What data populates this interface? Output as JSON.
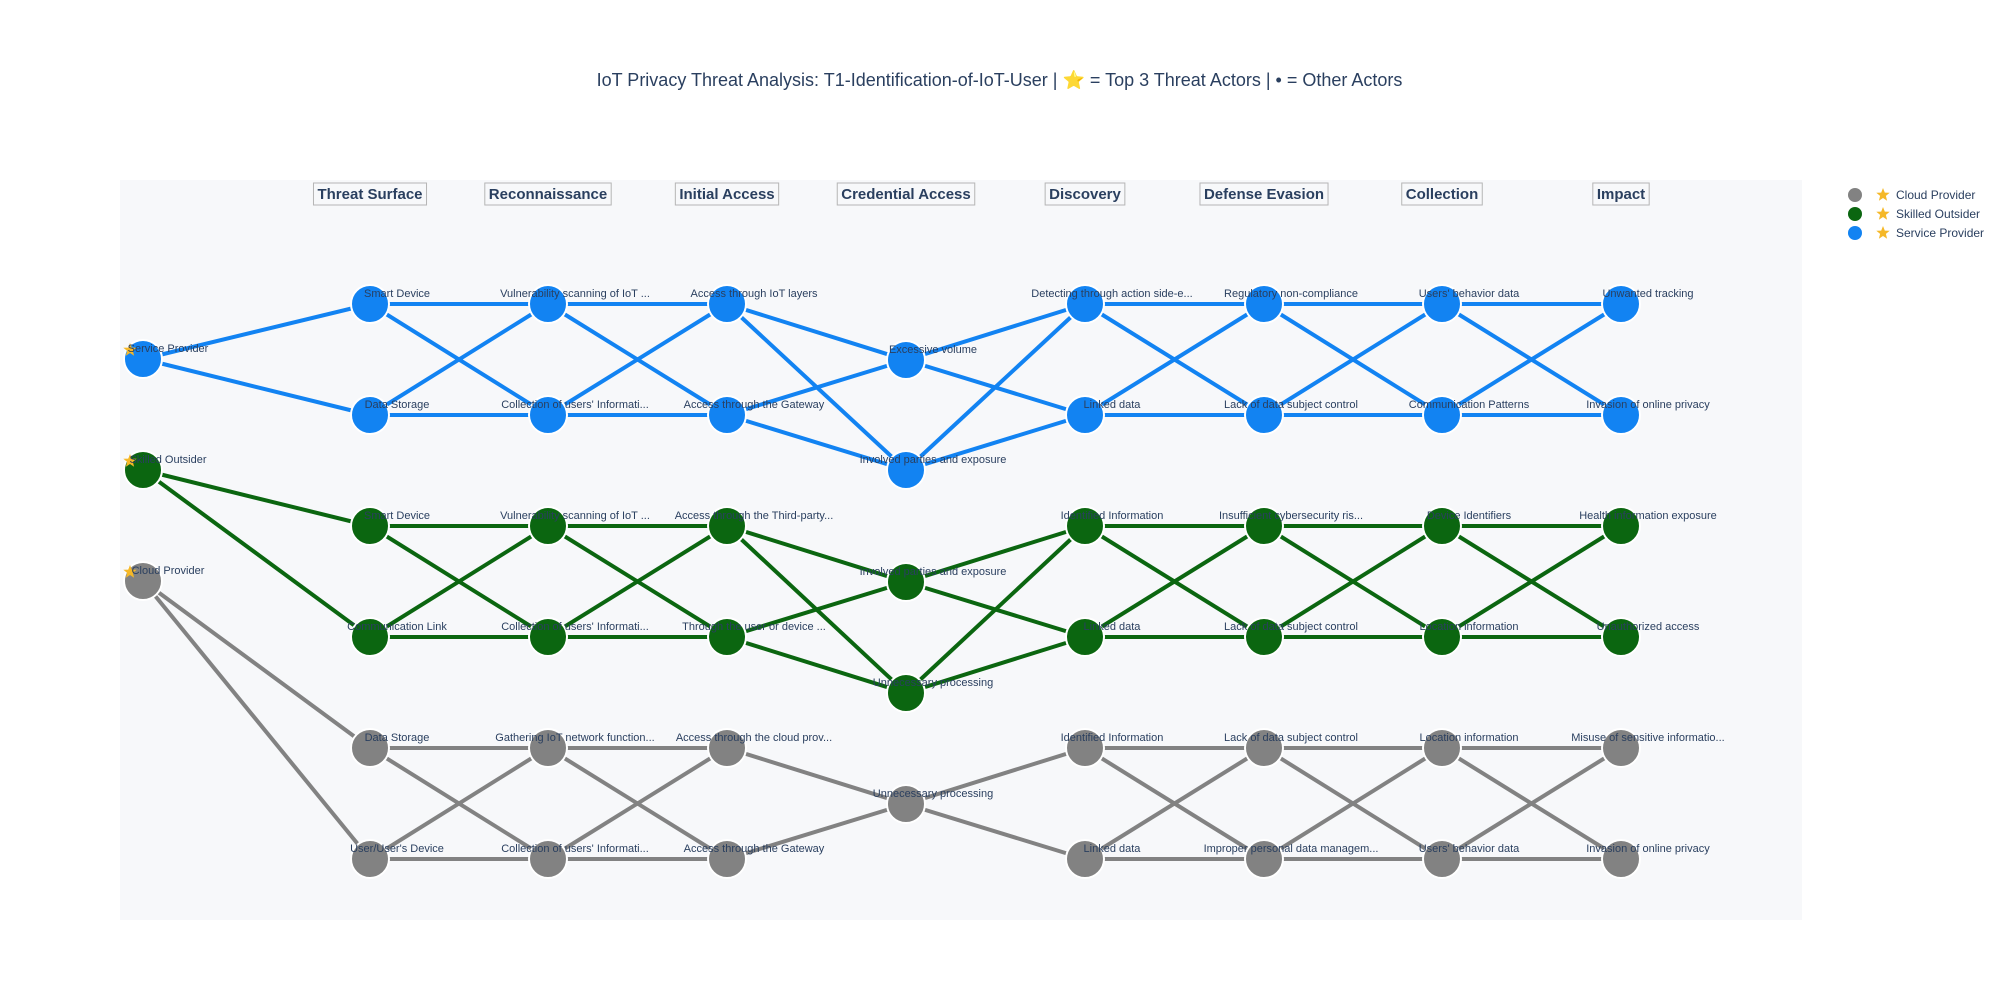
{
  "title": "IoT Privacy Threat Analysis: T1-Identification-of-IoT-User | ⭐ = Top 3 Threat Actors | • = Other Actors",
  "colors": {
    "service_provider": "#1283f2",
    "skilled_outsider": "#0b6610",
    "cloud_provider": "#828282",
    "star": "#f5b828",
    "plot_bg": "#f7f8fa",
    "text": "#2a3f5f"
  },
  "stages": [
    "Threat Surface",
    "Reconnaissance",
    "Initial Access",
    "Credential Access",
    "Discovery",
    "Defense Evasion",
    "Collection",
    "Impact"
  ],
  "legend": [
    {
      "name": "Cloud Provider",
      "color": "#828282"
    },
    {
      "name": "Skilled Outsider",
      "color": "#0b6610"
    },
    {
      "name": "Service Provider",
      "color": "#1283f2"
    }
  ],
  "actors": [
    {
      "name": "Service Provider",
      "color": "#1283f2",
      "top3": true,
      "layers": [
        [
          "Smart Device",
          "Data Storage"
        ],
        [
          "Vulnerability scanning of IoT ...",
          "Collection of users' Informati..."
        ],
        [
          "Access through IoT layers",
          "Access through the Gateway"
        ],
        [
          "Excessive volume",
          "Involved parties and exposure"
        ],
        [
          "Detecting through action side-e...",
          "Linked data"
        ],
        [
          "Regulatory non-compliance",
          "Lack of data subject control"
        ],
        [
          "Users' behavior data",
          "Communication Patterns"
        ],
        [
          "Unwanted tracking",
          "Invasion of online privacy"
        ]
      ]
    },
    {
      "name": "Skilled Outsider",
      "color": "#0b6610",
      "top3": true,
      "layers": [
        [
          "Smart Device",
          "Communication Link"
        ],
        [
          "Vulnerability scanning of IoT ...",
          "Collection of users' Informati..."
        ],
        [
          "Access through the Third-party...",
          "Through the user or device ..."
        ],
        [
          "Involved parties and exposure",
          "Unnecessary processing"
        ],
        [
          "Identified Information",
          "Linked data"
        ],
        [
          "Insufficient cybersecurity ris...",
          "Lack of data subject control"
        ],
        [
          "Device Identifiers",
          "Location information"
        ],
        [
          "Health information exposure",
          "Unauthorized access"
        ]
      ]
    },
    {
      "name": "Cloud Provider",
      "color": "#828282",
      "top3": true,
      "layers": [
        [
          "Data Storage",
          "User/User's Device"
        ],
        [
          "Gathering IoT network function...",
          "Collection of users' Informati..."
        ],
        [
          "Access through the cloud prov...",
          "Access through the Gateway"
        ],
        [
          "Unnecessary processing"
        ],
        [
          "Identified Information",
          "Linked data"
        ],
        [
          "Lack of data subject control",
          "Improper personal data managem..."
        ],
        [
          "Location information",
          "Users' behavior data"
        ],
        [
          "Misuse of sensitive informatio...",
          "Invasion of online privacy"
        ]
      ]
    }
  ]
}
